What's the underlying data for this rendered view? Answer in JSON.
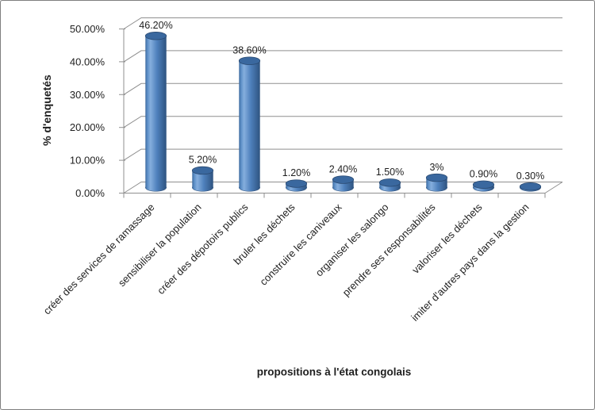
{
  "chart_data": {
    "type": "bar",
    "subtype": "3d-cylinder",
    "title": "",
    "xlabel": "propositions à l'état congolais",
    "ylabel": "% d'enquetés",
    "categories": [
      "créer des services de ramassage",
      "sensibiliser la population",
      "créer des dépotoirs publics",
      "bruler les déchets",
      "construire les caniveaux",
      "organiser les salongo",
      "prendre ses responsabilités",
      "valoriser les déchets",
      "imiter d'autres pays dans la gestion"
    ],
    "values": [
      46.2,
      5.2,
      38.6,
      1.2,
      2.4,
      1.5,
      3,
      0.9,
      0.3
    ],
    "data_labels": [
      "46.20%",
      "5.20%",
      "38.60%",
      "1.20%",
      "2.40%",
      "1.50%",
      "3%",
      "0.90%",
      "0.30%"
    ],
    "y_axis": {
      "min": 0,
      "max": 50,
      "tick_step": 10,
      "tick_values": [
        0,
        10,
        20,
        30,
        40,
        50
      ],
      "tick_labels": [
        "0.00%",
        "10.00%",
        "20.00%",
        "30.00%",
        "40.00%",
        "50.00%"
      ]
    },
    "grid": true,
    "legend": false
  },
  "colors": {
    "background": "#ffffff",
    "canvas_border": "#7f7f7f",
    "text": "#1f1f1f",
    "gridline": "#8f8f8f",
    "axis": "#8f8f8f",
    "bar_gradient": [
      "#3c699e",
      "#5e90c8",
      "#85aedd",
      "#4f81bd",
      "#2e5380"
    ],
    "bar_top": "#3a689f",
    "bar_outline": "#2a4a72"
  }
}
